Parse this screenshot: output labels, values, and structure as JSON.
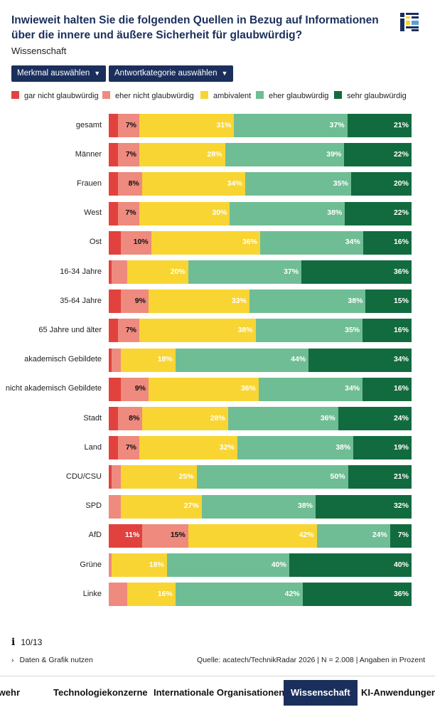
{
  "header": {
    "title": "Inwieweit halten Sie die folgenden Quellen in Bezug auf Informationen über die innere und äußere Sicherheit für glaubwürdig?",
    "subtitle": "Wissenschaft"
  },
  "controls": {
    "feature_select": "Merkmal auswählen",
    "answer_select": "Antwortkategorie auswählen"
  },
  "colors": {
    "gar_nicht": "#e2423d",
    "eher_nicht": "#ee8a7e",
    "ambivalent": "#f8d533",
    "eher": "#6fbd94",
    "sehr": "#126b3f",
    "accent": "#1b2f5c"
  },
  "chart_data": {
    "type": "bar",
    "orientation": "horizontal",
    "stacked": true,
    "unit": "%",
    "categories": [
      "gesamt",
      "Männer",
      "Frauen",
      "West",
      "Ost",
      "16-34 Jahre",
      "35-64 Jahre",
      "65 Jahre und älter",
      "akademisch Gebildete",
      "nicht akademisch Gebildete",
      "Stadt",
      "Land",
      "CDU/CSU",
      "SPD",
      "AfD",
      "Grüne",
      "Linke"
    ],
    "series": [
      {
        "name": "gar nicht glaubwürdig",
        "values": [
          3,
          3,
          3,
          3,
          4,
          1,
          4,
          3,
          1,
          4,
          3,
          3,
          1,
          0,
          11,
          0,
          0
        ],
        "labels": [
          "",
          "",
          "",
          "",
          "",
          "",
          "",
          "",
          "",
          "",
          "",
          "",
          "",
          "",
          "11%",
          "",
          ""
        ]
      },
      {
        "name": "eher nicht glaubwürdig",
        "values": [
          7,
          7,
          8,
          7,
          10,
          5,
          9,
          7,
          3,
          9,
          8,
          7,
          3,
          4,
          15,
          1,
          6
        ],
        "labels": [
          "7%",
          "7%",
          "8%",
          "7%",
          "10%",
          "",
          "9%",
          "7%",
          "",
          "9%",
          "8%",
          "7%",
          "",
          "",
          "15%",
          "",
          ""
        ]
      },
      {
        "name": "ambivalent",
        "values": [
          31,
          28,
          34,
          30,
          36,
          20,
          33,
          38,
          18,
          36,
          28,
          32,
          25,
          27,
          42,
          18,
          16
        ],
        "labels": [
          "31%",
          "28%",
          "34%",
          "30%",
          "36%",
          "20%",
          "33%",
          "38%",
          "18%",
          "36%",
          "28%",
          "32%",
          "25%",
          "27%",
          "42%",
          "18%",
          "16%"
        ]
      },
      {
        "name": "eher glaubwürdig",
        "values": [
          37,
          39,
          35,
          38,
          34,
          37,
          38,
          35,
          44,
          34,
          36,
          38,
          50,
          38,
          24,
          40,
          42
        ],
        "labels": [
          "37%",
          "39%",
          "35%",
          "38%",
          "34%",
          "37%",
          "38%",
          "35%",
          "44%",
          "34%",
          "36%",
          "38%",
          "50%",
          "38%",
          "24%",
          "40%",
          "42%"
        ]
      },
      {
        "name": "sehr glaubwürdig",
        "values": [
          21,
          22,
          20,
          22,
          16,
          36,
          15,
          16,
          34,
          16,
          24,
          19,
          21,
          32,
          7,
          40,
          36
        ],
        "labels": [
          "21%",
          "22%",
          "20%",
          "22%",
          "16%",
          "36%",
          "15%",
          "16%",
          "34%",
          "16%",
          "24%",
          "19%",
          "21%",
          "32%",
          "7%",
          "40%",
          "36%"
        ]
      }
    ],
    "legend_position": "top",
    "grid": false
  },
  "footer": {
    "page": "10/13",
    "data_link": "Daten & Grafik nutzen",
    "source": "Quelle: acatech/TechnikRadar 2026 | N = 2.008 | Angaben in Prozent"
  },
  "tabs": [
    {
      "label": "Bundeswehr",
      "active": false
    },
    {
      "label": "Technologiekonzerne",
      "active": false
    },
    {
      "label": "Internationale Organisationen",
      "active": false
    },
    {
      "label": "Wissenschaft",
      "active": true
    },
    {
      "label": "KI-Anwendungen",
      "active": false
    }
  ]
}
